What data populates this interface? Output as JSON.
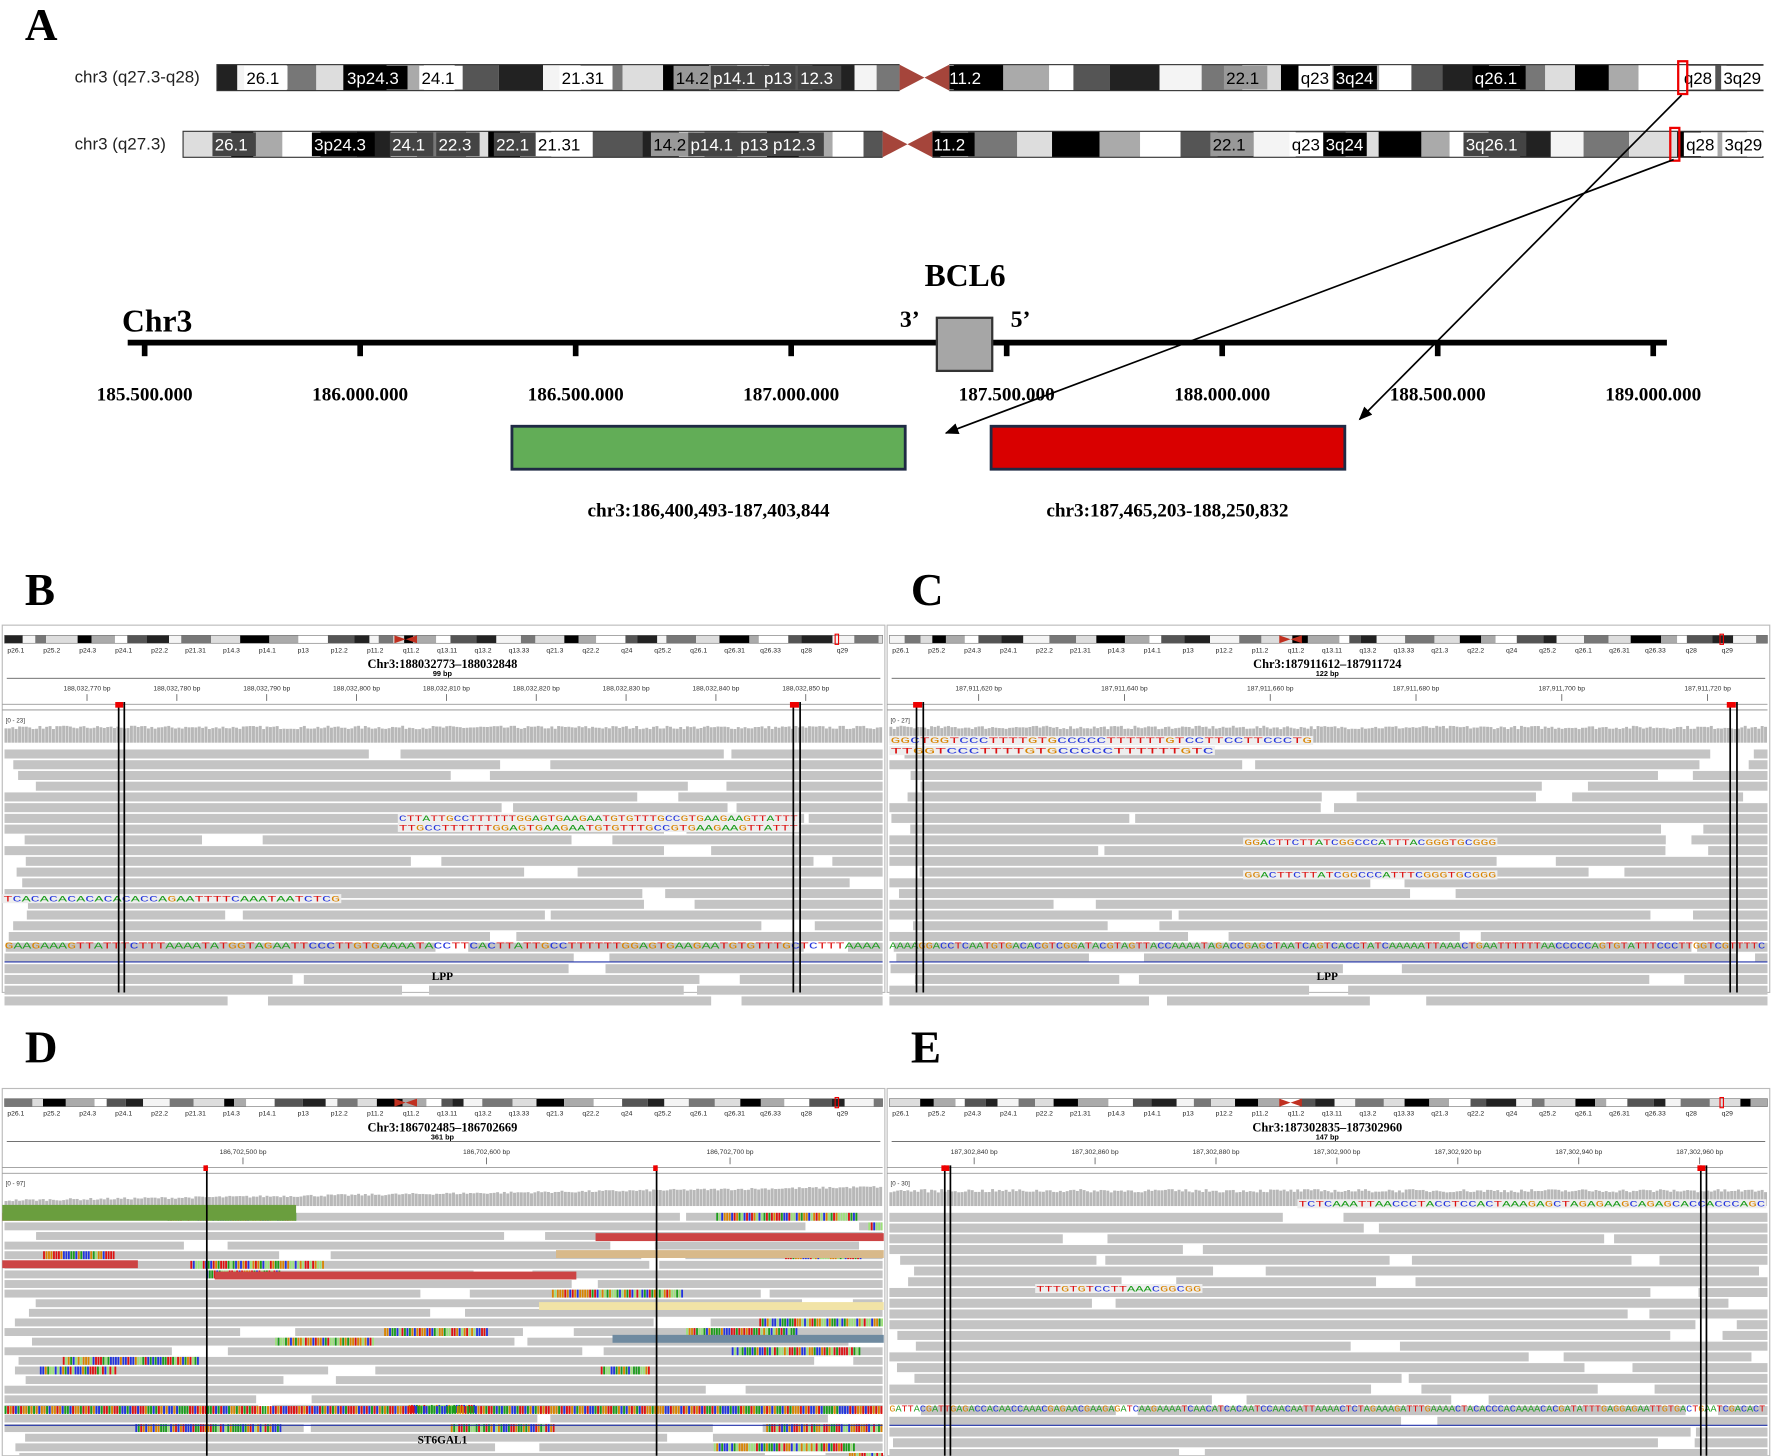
{
  "panel_a": {
    "label": "A",
    "ideograms": [
      {
        "label": "chr3 (q27.3-q28)",
        "bands": [
          "26.1",
          "3p24.3",
          "24.1",
          "21.31",
          "14.2",
          "p14.1",
          "p13",
          "12.3",
          "11.2",
          "22.1",
          "q23",
          "3q24",
          "q26.1",
          "q28",
          "3q29"
        ]
      },
      {
        "label": "chr3 (q27.3)",
        "bands": [
          "26.1",
          "3p24.3",
          "24.1",
          "22.3",
          "22.1",
          "21.31",
          "14.2",
          "p14.1",
          "p13",
          "p12.3",
          "11.2",
          "22.1",
          "q23",
          "3q24",
          "3q26.1",
          "q28",
          "3q29"
        ]
      }
    ],
    "chromosome": "Chr3",
    "gene": "BCL6",
    "end_3": "3’",
    "end_5": "5’",
    "axis_ticks": [
      "185.500.000",
      "186.000.000",
      "186.500.000",
      "187.000.000",
      "187.500.000",
      "188.000.000",
      "188.500.000",
      "189.000.000"
    ],
    "regions": [
      {
        "label": "chr3:186,400,493-187,403,844",
        "color": "#62ad57"
      },
      {
        "label": "chr3:187,465,203-188,250,832",
        "color": "#d90000"
      }
    ]
  },
  "igv_bands": [
    "p26.1",
    "p25.2",
    "p24.3",
    "p24.1",
    "p22.2",
    "p21.31",
    "p14.3",
    "p14.1",
    "p13",
    "p12.2",
    "p11.2",
    "q11.2",
    "q13.11",
    "q13.2",
    "q13.33",
    "q21.3",
    "q22.2",
    "q24",
    "q25.2",
    "q26.1",
    "q26.31",
    "q26.33",
    "q28",
    "q29"
  ],
  "igv_panels": [
    {
      "label": "B",
      "locus": "Chr3:188032773–188032848",
      "width": "99 bp",
      "ticks": [
        "188,032,770 bp",
        "188,032,780 bp",
        "188,032,790 bp",
        "188,032,800 bp",
        "188,032,810 bp",
        "188,032,820 bp",
        "188,032,830 bp",
        "188,032,840 bp",
        "188,032,850 bp"
      ],
      "range": "[0 - 23]",
      "gene": "LPP",
      "reference": "GAAGAAAGTTATTTCTTTAAAATATGGTAGAATTCCCTTGTGAAAATACCTTCACTTATTGCCTTTTTTGGAGTGAAGAATGTGTTTGCTCTTTAAAA",
      "read_sequences": [
        "CTTATTGCCTTTTTTGGAGTGAAGAATGTGTTTGCCGTGAAGAAGTTATTT",
        "TTGCCTTTTTTGGAGTGAAGAATGTGTTTGCCGTGAAGAAGTTATTT",
        "TCACACACACACACACCAGAATTTTCAAATAATCTCG"
      ]
    },
    {
      "label": "C",
      "locus": "Chr3:187911612–187911724",
      "width": "122 bp",
      "ticks": [
        "187,911,620 bp",
        "187,911,640 bp",
        "187,911,660 bp",
        "187,911,680 bp",
        "187,911,700 bp",
        "187,911,720 bp"
      ],
      "range": "[0 - 27]",
      "gene": "LPP",
      "reference": "AAAAGGACCTCAATGTGACACGTCGGATACGTAGTTACCAAAATAGACCGAGCTAATCAGTCACCTATCAAAAATTAAACTGAATTTTTTAACCCCCAGTGTATTTCCCTTGGTCGTTTTC",
      "read_sequences": [
        "GGCTGGTCCCTTTTGTGCCCCCTTTTTTGTCCTTCCTTCCCTG",
        "TTGGTCCCTTTTGTGCCCCCTTTTTTGTC",
        "GGACTTCTTATCGGCCCATTTACGGGTGCGGG",
        "GGACTTCTTATCGGCCCATTTCGGGTGCGGG"
      ]
    },
    {
      "label": "D",
      "locus": "Chr3:186702485–186702669",
      "width": "361 bp",
      "ticks": [
        "186,702,500 bp",
        "186,702,600 bp",
        "186,702,700 bp"
      ],
      "range": "[0 - 97]",
      "gene": "ST6GAL1"
    },
    {
      "label": "E",
      "locus": "Chr3:187302835–187302960",
      "width": "147 bp",
      "ticks": [
        "187,302,840 bp",
        "187,302,860 bp",
        "187,302,880 bp",
        "187,302,900 bp",
        "187,302,920 bp",
        "187,302,940 bp",
        "187,302,960 bp"
      ],
      "range": "[0 - 30]",
      "reference": "GATTACGATTGAGACCACAACCAAACGAGAACGAAGAGATCAAGAAAATCAACATCACAATCCAACAATTAAAACTCTAGAAAGATTTGAAAACTACACCCACAAAACACGATATTTGAGGAGAATTGTGACTGAATCGACACT",
      "read_sequences": [
        "TCTCAAATTAACCCTACCTCCACTAAAGAGCTAGAGAAGCAGAGCACCACCCAGC",
        "TTTGTGTCCTTAAACGGCGG"
      ]
    }
  ]
}
